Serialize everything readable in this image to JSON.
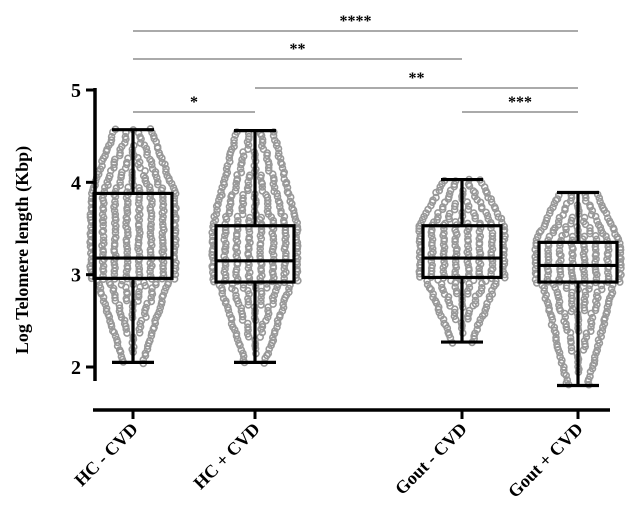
{
  "chart_data": {
    "type": "box",
    "ylabel": "Log Telomere length  (Kbp)",
    "xlabel": "",
    "ylim": [
      2,
      5
    ],
    "yticks": [
      2,
      3,
      4,
      5
    ],
    "categories": [
      "HC - CVD",
      "HC + CVD",
      "Gout - CVD",
      "Gout + CVD"
    ],
    "boxes": [
      {
        "name": "HC - CVD",
        "min": 2.05,
        "q1": 2.96,
        "median": 3.18,
        "q3": 3.88,
        "max": 4.57
      },
      {
        "name": "HC + CVD",
        "min": 2.05,
        "q1": 2.92,
        "median": 3.15,
        "q3": 3.53,
        "max": 4.56
      },
      {
        "name": "Gout - CVD",
        "min": 2.27,
        "q1": 2.97,
        "median": 3.18,
        "q3": 3.53,
        "max": 4.03
      },
      {
        "name": "Gout + CVD",
        "min": 1.8,
        "q1": 2.92,
        "median": 3.1,
        "q3": 3.35,
        "max": 3.89
      }
    ],
    "significance": [
      {
        "label": "****",
        "from": "HC - CVD",
        "to": "Gout + CVD"
      },
      {
        "label": "**",
        "from": "HC - CVD",
        "to": "Gout - CVD"
      },
      {
        "label": "**",
        "from": "HC + CVD",
        "to": "Gout + CVD"
      },
      {
        "label": "*",
        "from": "HC - CVD",
        "to": "HC + CVD"
      },
      {
        "label": "***",
        "from": "Gout - CVD",
        "to": "Gout + CVD"
      }
    ],
    "colors": {
      "points": "#999999",
      "box": "#000000",
      "bracket": "#555555"
    },
    "grid": false,
    "legend": "none"
  }
}
